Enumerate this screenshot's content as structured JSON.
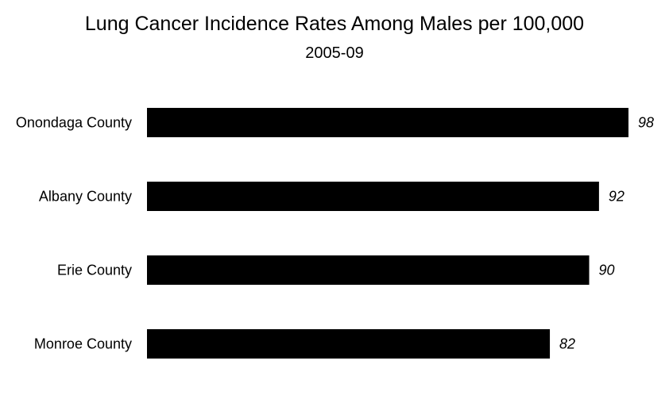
{
  "chart_data": {
    "type": "bar",
    "orientation": "horizontal",
    "title": "Lung Cancer Incidence Rates Among Males per 100,000",
    "subtitle": "2005-09",
    "categories": [
      "Onondaga County",
      "Albany County",
      "Erie County",
      "Monroe County"
    ],
    "values": [
      98,
      92,
      90,
      82
    ],
    "xlabel": "",
    "ylabel": "",
    "xlim": [
      0,
      98
    ],
    "grid": false,
    "legend": "none",
    "bar_color": "#000000",
    "data_labels": true
  }
}
